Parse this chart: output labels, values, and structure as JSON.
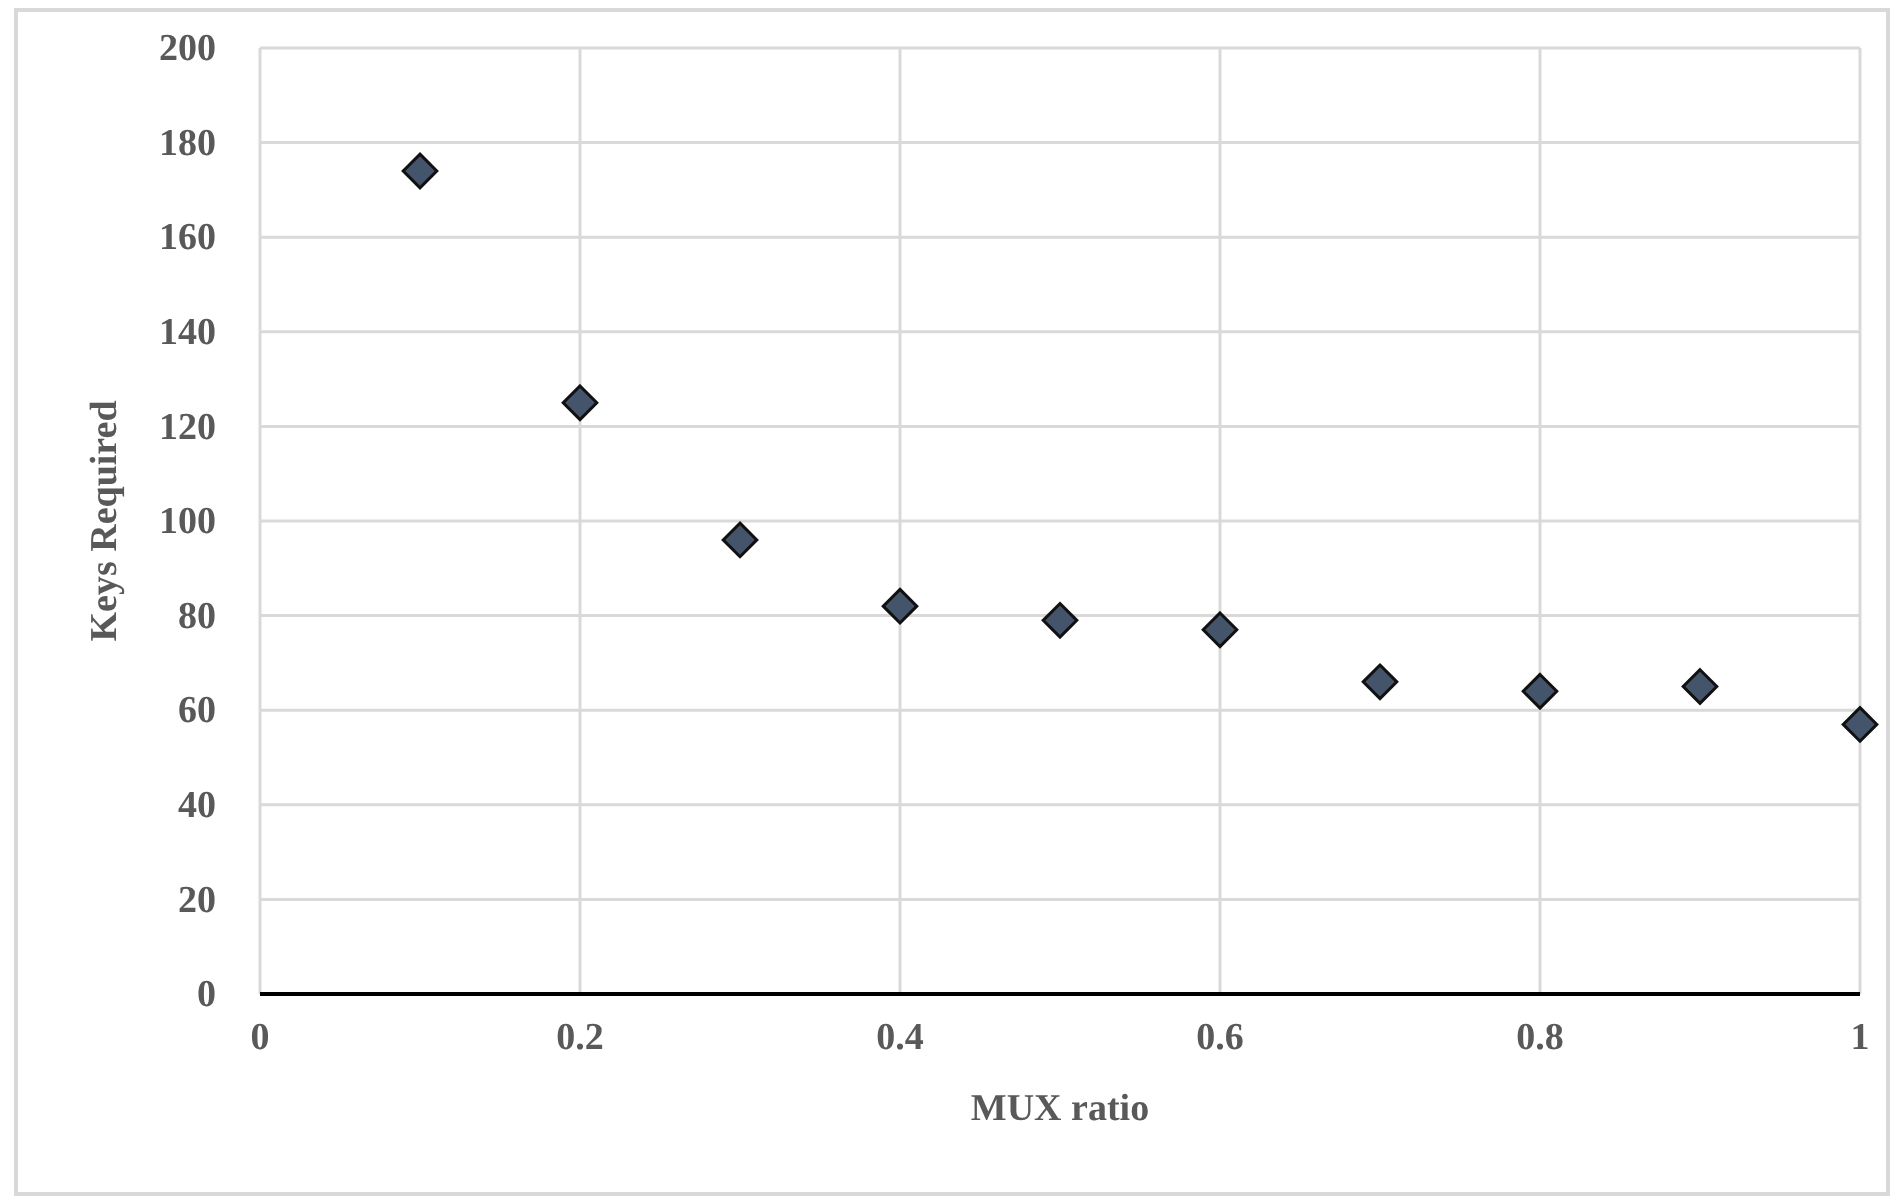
{
  "chart_data": {
    "type": "scatter",
    "xlabel": "MUX ratio",
    "ylabel": "Keys Required",
    "x": [
      0.1,
      0.2,
      0.3,
      0.4,
      0.5,
      0.6,
      0.7,
      0.8,
      0.9,
      1
    ],
    "series": [
      {
        "color": "#44546a",
        "values": [
          174,
          125,
          96,
          82,
          79,
          77,
          66,
          64,
          65,
          57
        ]
      }
    ],
    "xlim": [
      0,
      1
    ],
    "xticks": [
      0,
      0.2,
      0.4,
      0.6,
      0.8,
      1
    ],
    "ylim": [
      0,
      200
    ],
    "yticks": [
      0,
      20,
      40,
      60,
      80,
      100,
      120,
      140,
      160,
      180,
      200
    ],
    "grid": true,
    "marker": "diamond"
  }
}
